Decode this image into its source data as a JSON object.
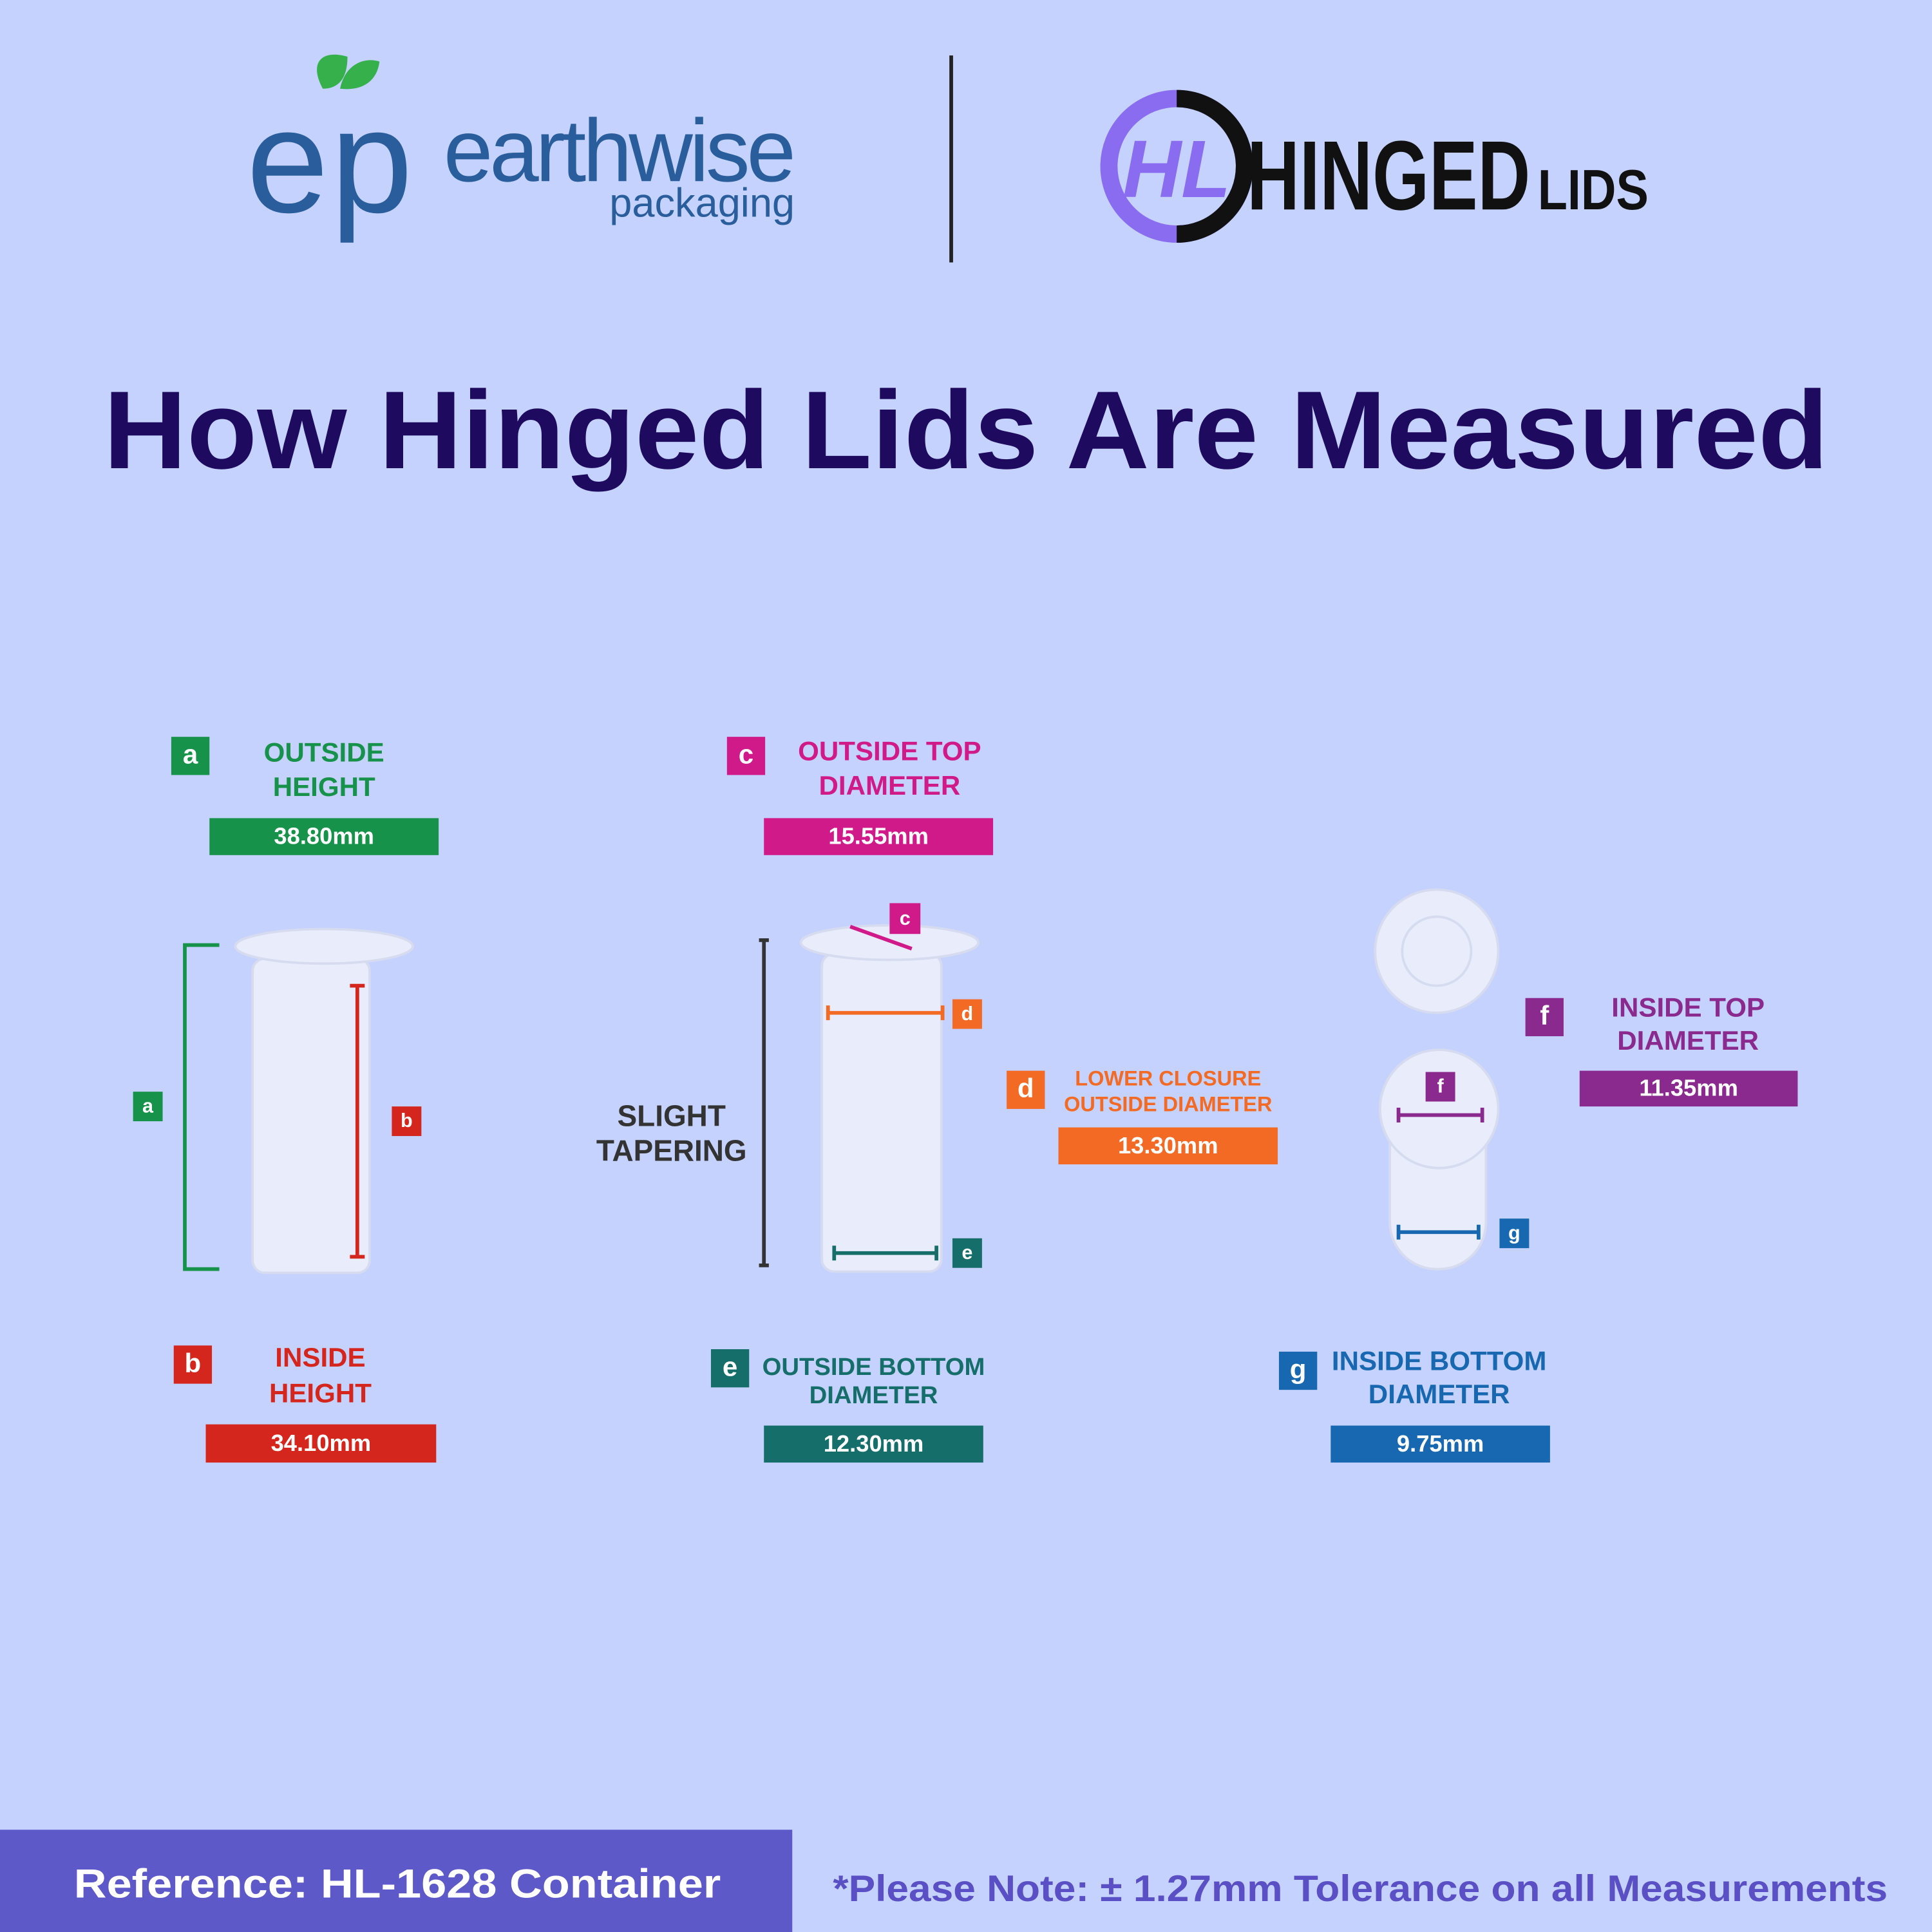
{
  "header": {
    "earthwise_logo": {
      "mark": "ep",
      "name": "earthwise",
      "sub": "packaging"
    },
    "hinged_logo": {
      "mark": "HL",
      "name": "HINGED",
      "sub": "LIDS"
    }
  },
  "title": "How Hinged Lids Are Measured",
  "measurements": [
    {
      "letter": "a",
      "label": [
        "OUTSIDE",
        "HEIGHT"
      ],
      "value": "38.80mm",
      "color": "#17924a"
    },
    {
      "letter": "b",
      "label": [
        "INSIDE",
        "HEIGHT"
      ],
      "value": "34.10mm",
      "color": "#d4261c"
    },
    {
      "letter": "c",
      "label": [
        "OUTSIDE TOP",
        "DIAMETER"
      ],
      "value": "15.55mm",
      "color": "#d01a8a"
    },
    {
      "letter": "d",
      "label": [
        "LOWER CLOSURE",
        "OUTSIDE DIAMETER"
      ],
      "value": "13.30mm",
      "color": "#f26a23"
    },
    {
      "letter": "e",
      "label": [
        "OUTSIDE BOTTOM",
        "DIAMETER"
      ],
      "value": "12.30mm",
      "color": "#156e6a"
    },
    {
      "letter": "f",
      "label": [
        "INSIDE TOP",
        "DIAMETER"
      ],
      "value": "11.35mm",
      "color": "#8b2a8e"
    },
    {
      "letter": "g",
      "label": [
        "INSIDE BOTTOM",
        "DIAMETER"
      ],
      "value": "9.75mm",
      "color": "#1768b0"
    }
  ],
  "diagram_note": [
    "SLIGHT",
    "TAPERING"
  ],
  "footer": {
    "reference": "Reference: HL-1628 Container",
    "note": "*Please Note: ± 1.27mm Tolerance on all Measurements"
  }
}
